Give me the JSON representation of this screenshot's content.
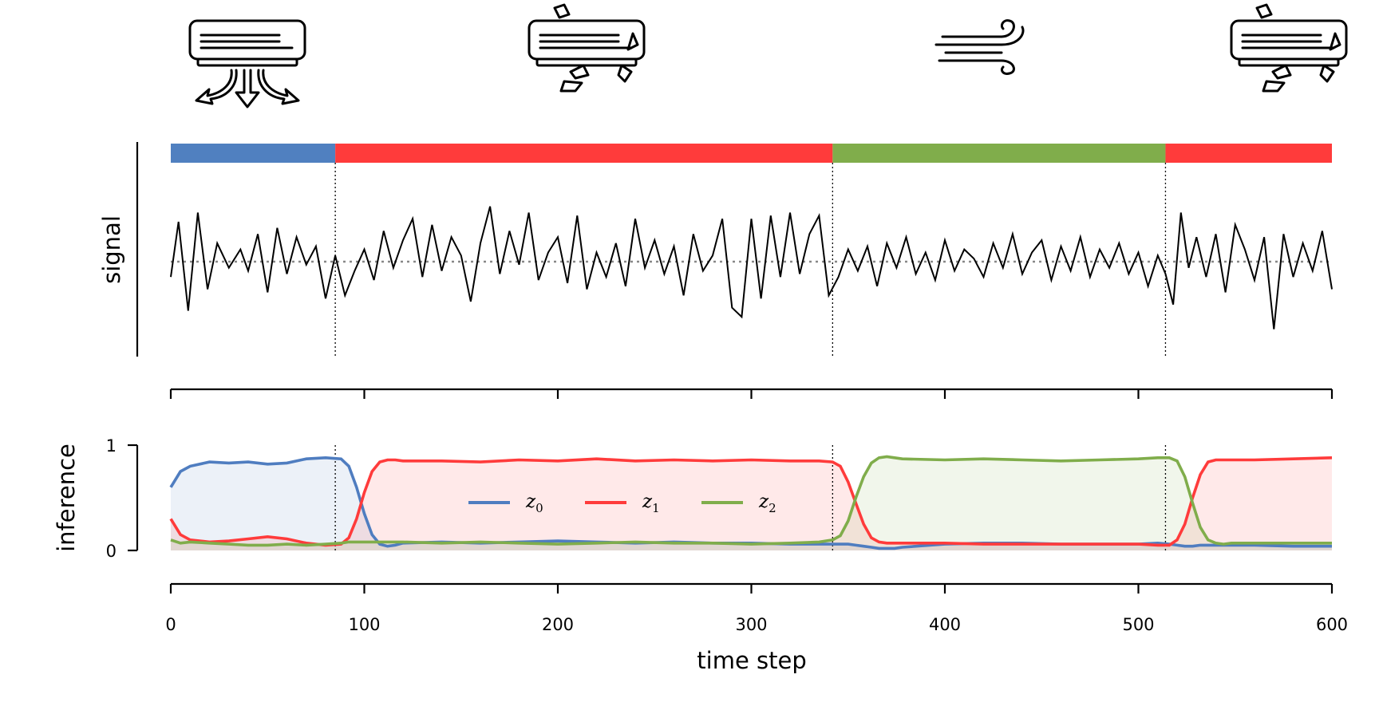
{
  "chart_data": [
    {
      "type": "line",
      "panel": "signal",
      "ylabel": "signal",
      "xlim": [
        0,
        600
      ],
      "ylim": [
        -2.6,
        2.6
      ],
      "baseline": 0,
      "segments": [
        {
          "start": 0,
          "end": 85,
          "state": 0,
          "color": "#5080c0"
        },
        {
          "start": 85,
          "end": 342,
          "state": 1,
          "color": "#ff3b3b"
        },
        {
          "start": 342,
          "end": 514,
          "state": 2,
          "color": "#80ad4b"
        },
        {
          "start": 514,
          "end": 600,
          "state": 1,
          "color": "#ff3b3b"
        }
      ],
      "changepoints": [
        85,
        342,
        514
      ],
      "icons": [
        "ac-on-icon",
        "ac-broken-icon",
        "wind-icon",
        "ac-broken-icon"
      ],
      "x": [
        0,
        4,
        9,
        14,
        19,
        24,
        30,
        36,
        40,
        45,
        50,
        55,
        60,
        65,
        70,
        75,
        80,
        85,
        90,
        95,
        100,
        105,
        110,
        115,
        120,
        125,
        130,
        135,
        140,
        145,
        150,
        155,
        160,
        165,
        170,
        175,
        180,
        185,
        190,
        195,
        200,
        205,
        210,
        215,
        220,
        225,
        230,
        235,
        240,
        245,
        250,
        255,
        260,
        265,
        270,
        275,
        280,
        285,
        290,
        295,
        300,
        305,
        310,
        315,
        320,
        325,
        330,
        335,
        340,
        345,
        350,
        355,
        360,
        365,
        370,
        375,
        380,
        385,
        390,
        395,
        400,
        405,
        410,
        415,
        420,
        425,
        430,
        435,
        440,
        445,
        450,
        455,
        460,
        465,
        470,
        475,
        480,
        485,
        490,
        495,
        500,
        505,
        510,
        514,
        518,
        522,
        526,
        530,
        535,
        540,
        545,
        550,
        555,
        560,
        565,
        570,
        575,
        580,
        585,
        590,
        595,
        600
      ],
      "y": [
        -0.5,
        1.3,
        -1.6,
        1.6,
        -0.9,
        0.6,
        -0.2,
        0.4,
        -0.3,
        0.9,
        -1.0,
        1.1,
        -0.4,
        0.8,
        -0.1,
        0.5,
        -1.2,
        0.2,
        -1.1,
        -0.3,
        0.4,
        -0.6,
        1.0,
        -0.2,
        0.7,
        1.4,
        -0.5,
        1.2,
        -0.3,
        0.8,
        0.2,
        -1.3,
        0.6,
        1.8,
        -0.4,
        1.0,
        -0.1,
        1.6,
        -0.6,
        0.3,
        0.8,
        -0.7,
        1.5,
        -0.9,
        0.3,
        -0.5,
        0.6,
        -0.8,
        1.4,
        -0.2,
        0.7,
        -0.4,
        0.5,
        -1.1,
        0.9,
        -0.3,
        0.2,
        1.4,
        -1.5,
        -1.8,
        1.4,
        -1.2,
        1.5,
        -0.5,
        1.6,
        -0.4,
        0.9,
        1.5,
        -1.1,
        -0.5,
        0.4,
        -0.3,
        0.5,
        -0.8,
        0.6,
        -0.2,
        0.8,
        -0.4,
        0.3,
        -0.6,
        0.7,
        -0.3,
        0.4,
        0.1,
        -0.5,
        0.6,
        -0.2,
        0.9,
        -0.4,
        0.3,
        0.7,
        -0.6,
        0.5,
        -0.3,
        0.8,
        -0.5,
        0.4,
        -0.2,
        0.6,
        -0.4,
        0.3,
        -0.8,
        0.2,
        -0.4,
        -1.4,
        1.6,
        -0.2,
        0.8,
        -0.5,
        0.9,
        -1.0,
        1.2,
        0.4,
        -0.6,
        0.8,
        -2.2,
        0.9,
        -0.5,
        0.6,
        -0.3,
        1.0,
        -0.9
      ]
    },
    {
      "type": "area",
      "panel": "inference",
      "xlabel": "time step",
      "ylabel": "inference",
      "xlim": [
        0,
        600
      ],
      "ylim": [
        0,
        1
      ],
      "xticks": [
        0,
        100,
        200,
        300,
        400,
        500,
        600
      ],
      "yticks": [
        0,
        1
      ],
      "changepoints": [
        85,
        342,
        514
      ],
      "legend_position": "top-center",
      "x": [
        0,
        5,
        10,
        20,
        30,
        40,
        50,
        60,
        70,
        80,
        88,
        92,
        96,
        100,
        104,
        108,
        112,
        116,
        120,
        140,
        160,
        180,
        200,
        220,
        240,
        260,
        280,
        300,
        320,
        335,
        342,
        346,
        350,
        354,
        358,
        362,
        366,
        370,
        374,
        378,
        400,
        420,
        440,
        460,
        480,
        500,
        510,
        516,
        520,
        524,
        528,
        532,
        536,
        540,
        544,
        548,
        560,
        580,
        600
      ],
      "series": [
        {
          "name": "z",
          "subscript": "0",
          "color": "#4f7dc0",
          "values": [
            0.6,
            0.75,
            0.8,
            0.84,
            0.83,
            0.84,
            0.82,
            0.83,
            0.87,
            0.88,
            0.87,
            0.8,
            0.6,
            0.35,
            0.15,
            0.06,
            0.04,
            0.05,
            0.07,
            0.08,
            0.07,
            0.08,
            0.09,
            0.08,
            0.07,
            0.08,
            0.07,
            0.07,
            0.06,
            0.06,
            0.06,
            0.06,
            0.06,
            0.05,
            0.04,
            0.03,
            0.02,
            0.02,
            0.02,
            0.03,
            0.06,
            0.07,
            0.07,
            0.06,
            0.06,
            0.06,
            0.07,
            0.06,
            0.05,
            0.04,
            0.04,
            0.05,
            0.05,
            0.05,
            0.05,
            0.05,
            0.05,
            0.04,
            0.04
          ]
        },
        {
          "name": "z",
          "subscript": "1",
          "color": "#ff3b3b",
          "values": [
            0.3,
            0.15,
            0.1,
            0.08,
            0.09,
            0.11,
            0.13,
            0.11,
            0.07,
            0.05,
            0.06,
            0.12,
            0.3,
            0.55,
            0.75,
            0.84,
            0.86,
            0.86,
            0.85,
            0.85,
            0.84,
            0.86,
            0.85,
            0.87,
            0.85,
            0.86,
            0.85,
            0.86,
            0.85,
            0.85,
            0.84,
            0.8,
            0.65,
            0.45,
            0.25,
            0.12,
            0.08,
            0.07,
            0.07,
            0.07,
            0.07,
            0.06,
            0.06,
            0.06,
            0.06,
            0.06,
            0.05,
            0.05,
            0.1,
            0.25,
            0.5,
            0.72,
            0.84,
            0.86,
            0.86,
            0.86,
            0.86,
            0.87,
            0.88
          ]
        },
        {
          "name": "z",
          "subscript": "2",
          "color": "#80ad4b",
          "values": [
            0.1,
            0.07,
            0.08,
            0.07,
            0.06,
            0.05,
            0.05,
            0.06,
            0.05,
            0.06,
            0.07,
            0.08,
            0.08,
            0.08,
            0.08,
            0.08,
            0.08,
            0.08,
            0.08,
            0.07,
            0.08,
            0.07,
            0.06,
            0.07,
            0.08,
            0.07,
            0.07,
            0.06,
            0.07,
            0.08,
            0.1,
            0.14,
            0.28,
            0.5,
            0.7,
            0.83,
            0.88,
            0.89,
            0.88,
            0.87,
            0.86,
            0.87,
            0.86,
            0.85,
            0.86,
            0.87,
            0.88,
            0.88,
            0.85,
            0.7,
            0.45,
            0.22,
            0.1,
            0.07,
            0.06,
            0.07,
            0.07,
            0.07,
            0.07
          ]
        }
      ]
    }
  ]
}
